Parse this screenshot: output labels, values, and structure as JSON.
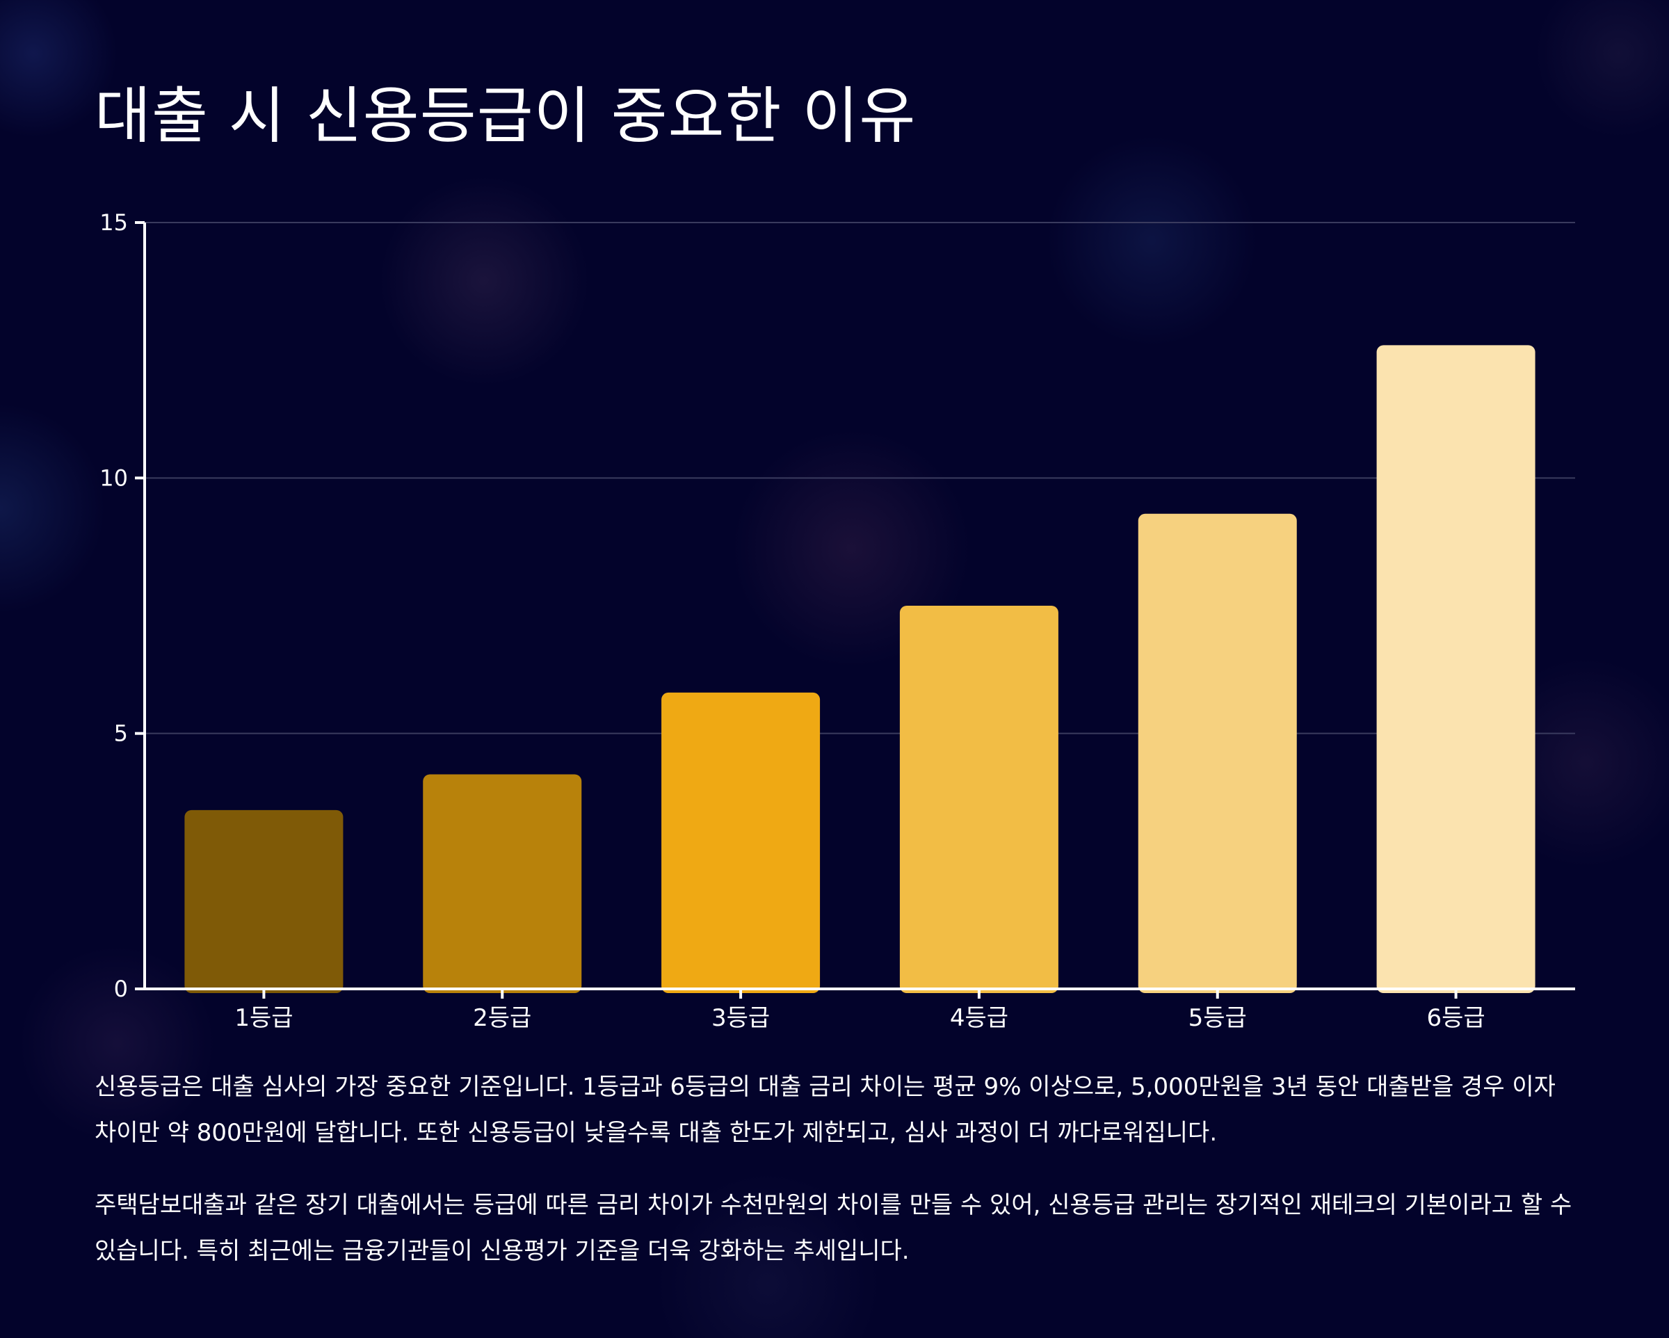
{
  "chart_data": {
    "type": "bar",
    "title": "대출 시 신용등급이 중요한 이유",
    "categories": [
      "1등급",
      "2등급",
      "3등급",
      "4등급",
      "5등급",
      "6등급"
    ],
    "values": [
      3.5,
      4.2,
      5.8,
      7.5,
      9.3,
      12.6
    ],
    "colors": [
      "#7f5a07",
      "#b8820b",
      "#efa914",
      "#f2bd45",
      "#f6d17f",
      "#fbe3af"
    ],
    "ylim": [
      0,
      15
    ],
    "yticks": [
      0,
      5,
      10,
      15
    ],
    "xlabel": "",
    "ylabel": "",
    "grid": true,
    "legend": "none"
  },
  "description": {
    "paragraph_1": "신용등급은 대출 심사의 가장 중요한 기준입니다. 1등급과 6등급의 대출 금리 차이는 평균 9% 이상으로, 5,000만원을 3년 동안 대출받을 경우 이자 차이만 약 800만원에 달합니다. 또한 신용등급이 낮을수록 대출 한도가 제한되고, 심사 과정이 더 까다로워집니다.",
    "paragraph_2": "주택담보대출과 같은 장기 대출에서는 등급에 따른 금리 차이가 수천만원의 차이를 만들 수 있어, 신용등급 관리는 장기적인 재테크의 기본이라고 할 수 있습니다. 특히 최근에는 금융기관들이 신용평가 기준을 더욱 강화하는 추세입니다."
  },
  "theme": {
    "background": "#03032b",
    "text": "#ffffff",
    "grid": "#3a3b5e",
    "axis": "#ffffff"
  }
}
